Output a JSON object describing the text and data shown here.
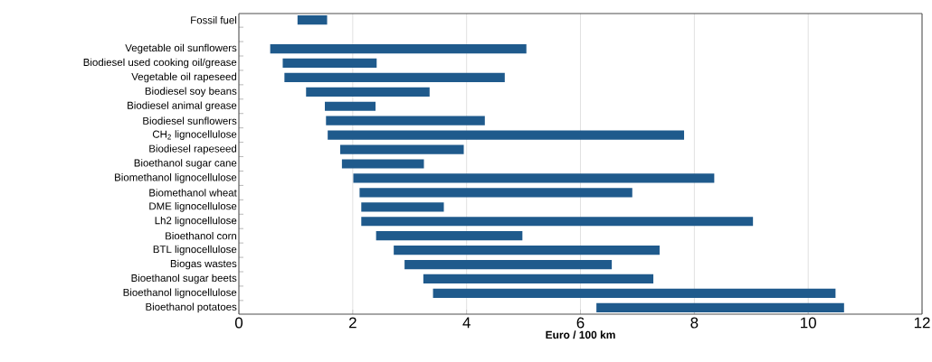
{
  "chart_data": {
    "type": "bar",
    "orientation": "horizontal",
    "xlabel": "Euro / 100 km",
    "categories": [
      "Fossil fuel",
      null,
      "Vegetable oil sunflowers",
      "Biodiesel used cooking oil/grease",
      "Vegetable oil rapeseed",
      "Biodiesel soy beans",
      "Biodiesel animal grease",
      "Biodiesel sunflowers",
      "CH$_{2}$ lignocellulose",
      "Biodiesel rapeseed",
      "Bioethanol sugar cane",
      "Biomethanol lignocellulose",
      "Biomethanol wheat",
      "DME lignocellulose",
      "Lh2 lignocellulose",
      "Bioethanol corn",
      "BTL lignocellulose",
      "Biogas wastes",
      "Bioethanol sugar beets",
      "Bioethanol lignocellulose",
      "Bioethanol potatoes"
    ],
    "base": [
      1.03,
      null,
      0.55,
      0.77,
      0.8,
      1.18,
      1.51,
      1.53,
      1.56,
      1.78,
      1.81,
      2.01,
      2.12,
      2.15,
      2.15,
      2.41,
      2.72,
      2.91,
      3.24,
      3.41,
      6.28
    ],
    "values": [
      0.52,
      null,
      4.5,
      1.65,
      3.87,
      2.17,
      0.89,
      2.79,
      6.26,
      2.17,
      1.44,
      6.34,
      4.79,
      1.45,
      6.88,
      2.57,
      4.67,
      3.64,
      4.04,
      7.07,
      4.35
    ],
    "color": "#1f5a8c",
    "xlim": [
      0,
      12
    ],
    "xticks": [
      0,
      2,
      4,
      6,
      8,
      10,
      12
    ],
    "grid": "x"
  }
}
